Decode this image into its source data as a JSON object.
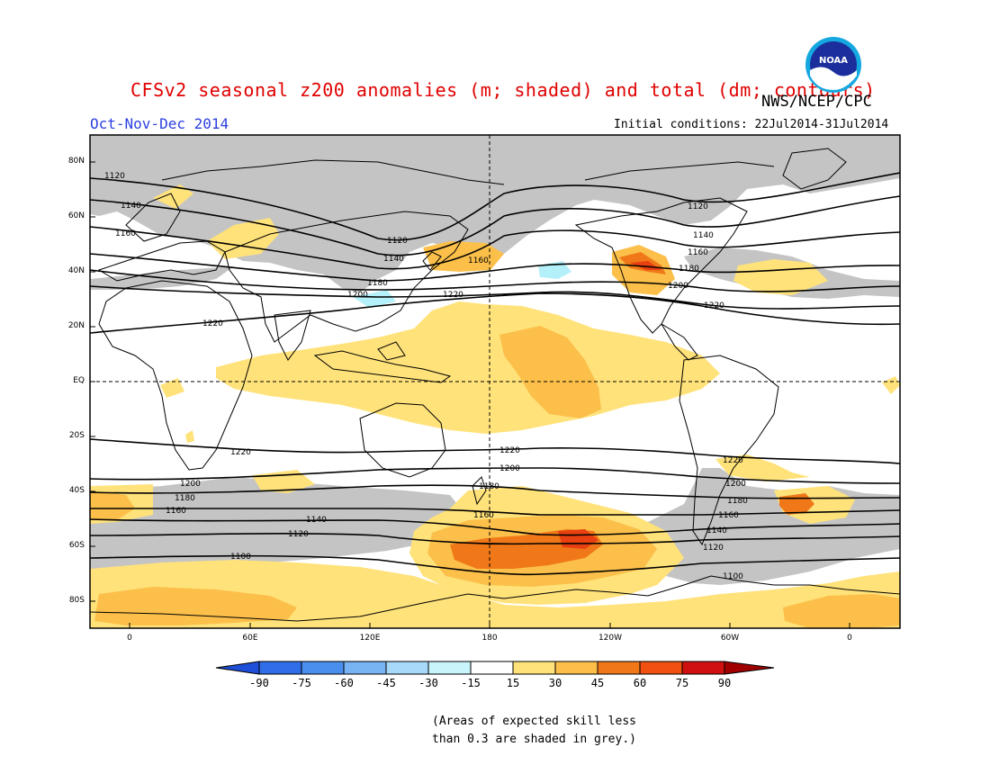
{
  "header": {
    "title": "CFSv2 seasonal z200 anomalies (m; shaded) and total (dm; contours)",
    "agency": "NWS/NCEP/CPC",
    "season": "Oct-Nov-Dec 2014",
    "initial_conditions": "Initial conditions: 22Jul2014-31Jul2014",
    "logo_text": "NOAA"
  },
  "colors": {
    "skill_grey": "#c4c4c4",
    "c15_30": "#ffe27a",
    "c30_45": "#fbbf4a",
    "c45_60": "#f07818",
    "c60_75": "#e84010",
    "cneg15_30": "#b4f0fa",
    "title_red": "#e00000",
    "season_blue": "#2b3fe0"
  },
  "map": {
    "lat_labels": [
      "80N",
      "60N",
      "40N",
      "20N",
      "EQ",
      "20S",
      "40S",
      "60S",
      "80S"
    ],
    "lon_labels": [
      "0",
      "60E",
      "120E",
      "180",
      "120W",
      "60W",
      "0"
    ],
    "contours": [
      {
        "name": "1100",
        "label": "1100"
      },
      {
        "name": "1120-nh",
        "label": "1120"
      },
      {
        "name": "1140-nh",
        "label": "1140"
      },
      {
        "name": "1160-nh",
        "label": "1160"
      },
      {
        "name": "1180-nh",
        "label": "1180"
      },
      {
        "name": "1200-nh",
        "label": "1200"
      },
      {
        "name": "1220-nh",
        "label": "1220"
      },
      {
        "name": "1220-sh",
        "label": "1220"
      },
      {
        "name": "1200-sh",
        "label": "1200"
      },
      {
        "name": "1180-sh",
        "label": "1180"
      },
      {
        "name": "1160-sh",
        "label": "1160"
      },
      {
        "name": "1140-sh",
        "label": "1140"
      },
      {
        "name": "1120-sh",
        "label": "1120"
      },
      {
        "name": "1100-sh",
        "label": "1100"
      }
    ]
  },
  "colorbar": {
    "labels": [
      "-90",
      "-75",
      "-60",
      "-45",
      "-30",
      "-15",
      "15",
      "30",
      "45",
      "60",
      "75",
      "90"
    ],
    "colors": [
      "#1e4fd8",
      "#2f6ee8",
      "#4a8fee",
      "#78b4f4",
      "#a8d8fa",
      "#c8f4fb",
      "#ffffff",
      "#ffe27a",
      "#fbbf4a",
      "#f07818",
      "#f05010",
      "#d01010",
      "#a00000"
    ]
  },
  "note": {
    "line1": "(Areas of expected skill less",
    "line2": "than 0.3 are shaded in grey.)"
  }
}
